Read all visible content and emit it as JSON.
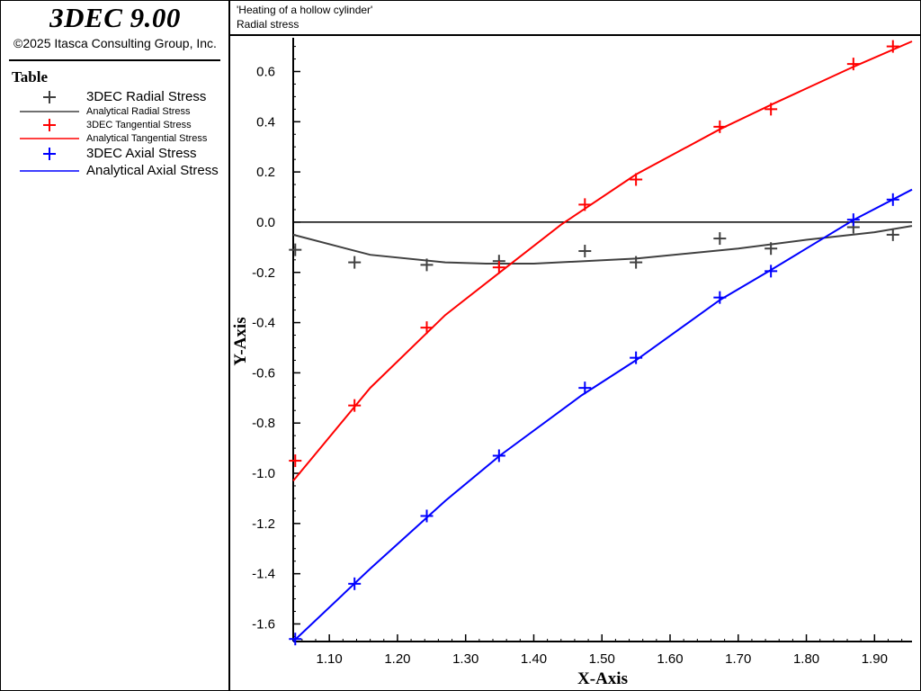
{
  "app": {
    "title": "3DEC 9.00",
    "copyright": "©2025 Itasca Consulting Group, Inc."
  },
  "legend": {
    "heading": "Table",
    "items": [
      {
        "label": "3DEC Radial Stress",
        "kind": "marker",
        "color": "#404040",
        "size": "big"
      },
      {
        "label": "Analytical Radial Stress",
        "kind": "line",
        "color": "#404040",
        "size": "small"
      },
      {
        "label": "3DEC Tangential Stress",
        "kind": "marker",
        "color": "#ff0000",
        "size": "small"
      },
      {
        "label": "Analytical Tangential Stress",
        "kind": "line",
        "color": "#ff0000",
        "size": "small"
      },
      {
        "label": "3DEC Axial Stress",
        "kind": "marker",
        "color": "#0000ff",
        "size": "big"
      },
      {
        "label": "Analytical Axial Stress",
        "kind": "line",
        "color": "#0000ff",
        "size": "big"
      }
    ]
  },
  "plot": {
    "title": "'Heating of a hollow cylinder'",
    "subtitle": "Radial stress"
  },
  "chart_data": {
    "type": "line",
    "xlabel": "X-Axis",
    "ylabel": "Y-Axis",
    "xlim": [
      1.047,
      1.955
    ],
    "ylim": [
      -1.67,
      0.72
    ],
    "xticks": [
      1.1,
      1.2,
      1.3,
      1.4,
      1.5,
      1.6,
      1.7,
      1.8,
      1.9
    ],
    "yticks": [
      -1.6,
      -1.4,
      -1.2,
      -1.0,
      -0.8,
      -0.6,
      -0.4,
      -0.2,
      0.0,
      0.2,
      0.4,
      0.6
    ],
    "zero_line": true,
    "grid": false,
    "series": [
      {
        "name": "3DEC Radial Stress",
        "kind": "marker",
        "color": "#404040",
        "x": [
          1.05,
          1.137,
          1.243,
          1.349,
          1.475,
          1.55,
          1.673,
          1.748,
          1.869,
          1.927
        ],
        "y": [
          -0.11,
          -0.16,
          -0.17,
          -0.155,
          -0.115,
          -0.16,
          -0.065,
          -0.105,
          -0.02,
          -0.05
        ]
      },
      {
        "name": "Analytical Radial Stress",
        "kind": "line",
        "color": "#404040",
        "x": [
          1.047,
          1.16,
          1.27,
          1.33,
          1.4,
          1.55,
          1.7,
          1.8,
          1.9,
          1.955
        ],
        "y": [
          -0.05,
          -0.13,
          -0.16,
          -0.165,
          -0.165,
          -0.145,
          -0.105,
          -0.07,
          -0.04,
          -0.015
        ]
      },
      {
        "name": "3DEC Tangential Stress",
        "kind": "marker",
        "color": "#ff0000",
        "x": [
          1.05,
          1.137,
          1.243,
          1.349,
          1.475,
          1.55,
          1.673,
          1.748,
          1.869,
          1.927
        ],
        "y": [
          -0.95,
          -0.73,
          -0.42,
          -0.18,
          0.07,
          0.17,
          0.38,
          0.45,
          0.63,
          0.7
        ]
      },
      {
        "name": "Analytical Tangential Stress",
        "kind": "line",
        "color": "#ff0000",
        "x": [
          1.047,
          1.16,
          1.27,
          1.35,
          1.44,
          1.55,
          1.673,
          1.75,
          1.87,
          1.955
        ],
        "y": [
          -1.03,
          -0.66,
          -0.37,
          -0.2,
          -0.01,
          0.19,
          0.37,
          0.47,
          0.62,
          0.72
        ]
      },
      {
        "name": "3DEC Axial Stress",
        "kind": "marker",
        "color": "#0000ff",
        "x": [
          1.05,
          1.137,
          1.243,
          1.349,
          1.475,
          1.55,
          1.673,
          1.748,
          1.869,
          1.927
        ],
        "y": [
          -1.66,
          -1.44,
          -1.17,
          -0.93,
          -0.66,
          -0.54,
          -0.3,
          -0.195,
          0.01,
          0.09
        ]
      },
      {
        "name": "Analytical Axial Stress",
        "kind": "line",
        "color": "#0000ff",
        "x": [
          1.047,
          1.16,
          1.27,
          1.35,
          1.47,
          1.55,
          1.673,
          1.748,
          1.87,
          1.955
        ],
        "y": [
          -1.67,
          -1.38,
          -1.11,
          -0.93,
          -0.69,
          -0.55,
          -0.31,
          -0.19,
          0.01,
          0.13
        ]
      }
    ]
  }
}
